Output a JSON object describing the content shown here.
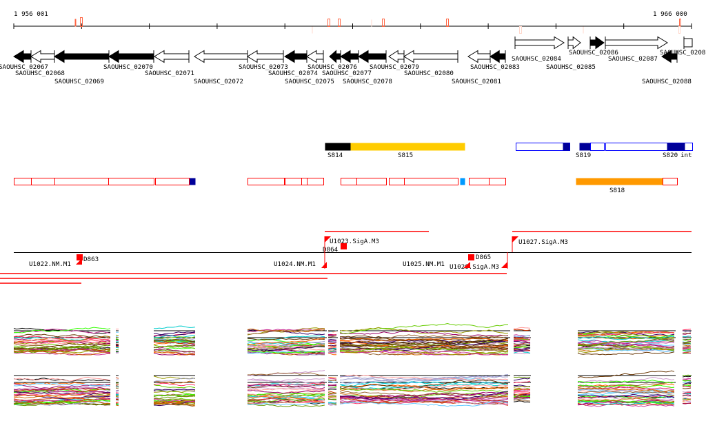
{
  "ruler": {
    "start_label": "1 956 001",
    "end_label": "1 966 000"
  },
  "genes": [
    {
      "id": "SAOUHSC_02067"
    },
    {
      "id": "SAOUHSC_02068"
    },
    {
      "id": "SAOUHSC_02069"
    },
    {
      "id": "SAOUHSC_02070"
    },
    {
      "id": "SAOUHSC_02071"
    },
    {
      "id": "SAOUHSC_02072"
    },
    {
      "id": "SAOUHSC_02073"
    },
    {
      "id": "SAOUHSC_02074"
    },
    {
      "id": "SAOUHSC_02075"
    },
    {
      "id": "SAOUHSC_02076"
    },
    {
      "id": "SAOUHSC_02077"
    },
    {
      "id": "SAOUHSC_02078"
    },
    {
      "id": "SAOUHSC_02079"
    },
    {
      "id": "SAOUHSC_02080"
    },
    {
      "id": "SAOUHSC_02081"
    },
    {
      "id": "SAOUHSC_02083"
    },
    {
      "id": "SAOUHSC_02084"
    },
    {
      "id": "SAOUHSC_02085"
    },
    {
      "id": "SAOUHSC_02086"
    },
    {
      "id": "SAOUHSC_02087"
    },
    {
      "id": "SAOUHSC_02088"
    },
    {
      "id": "SAOUHSC_0208"
    }
  ],
  "segments": {
    "labels": [
      "S814",
      "S815",
      "S819",
      "S820",
      "int",
      "S818"
    ]
  },
  "transcripts": {
    "units": [
      "U1022.NM.M1",
      "U1023.SigA.M3",
      "U1024.NM.M1",
      "U1025.NM.M1",
      "U1026.SigA.M3",
      "U1027.SigA.M3"
    ],
    "deletions": [
      "D863",
      "D864",
      "D865"
    ]
  },
  "colors": {
    "red": "#ff0000",
    "navy": "#000099",
    "blue": "#0000ff",
    "yellow": "#ffcc00",
    "orange": "#ff9900",
    "lightblue": "#0099ff",
    "marker": "#ff6644",
    "faint": "#ffd8cc"
  }
}
